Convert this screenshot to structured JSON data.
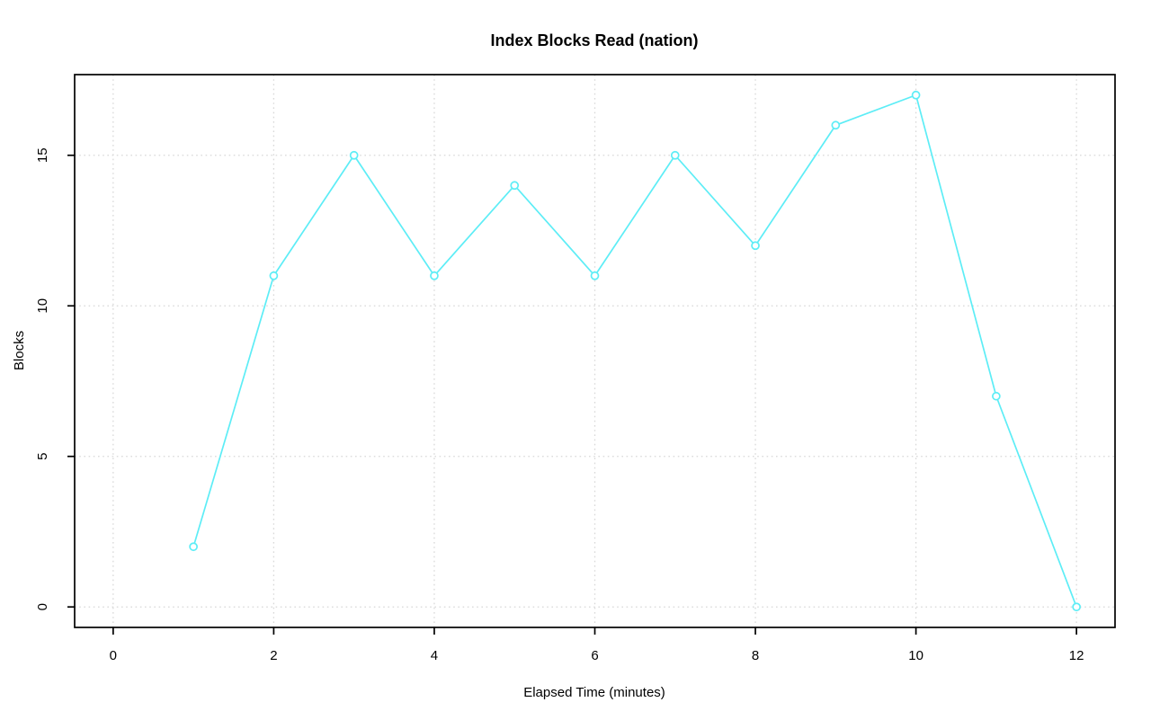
{
  "page": {
    "background_color": "#ffffff"
  },
  "chart_data": {
    "type": "line",
    "title": "Index Blocks Read (nation)",
    "xlabel": "Elapsed Time (minutes)",
    "ylabel": "Blocks",
    "x": [
      1,
      2,
      3,
      4,
      5,
      6,
      7,
      8,
      9,
      10,
      11,
      12
    ],
    "values": [
      2,
      11,
      15,
      11,
      14,
      11,
      15,
      12,
      16,
      17,
      7,
      0
    ],
    "series": [
      {
        "name": "Blocks",
        "values": [
          2,
          11,
          15,
          11,
          14,
          11,
          15,
          12,
          16,
          17,
          7,
          0
        ]
      }
    ],
    "xlim": [
      0,
      12
    ],
    "ylim": [
      0,
      17
    ],
    "x_ticks": [
      0,
      2,
      4,
      6,
      8,
      10,
      12
    ],
    "y_ticks": [
      0,
      5,
      10,
      15
    ],
    "grid": "dotted",
    "legend": "none",
    "marker": "open-circle",
    "colors": {
      "series": "#5DEDF6",
      "grid": "#D8D8D8",
      "frame": "#000000",
      "text": "#000000"
    }
  }
}
